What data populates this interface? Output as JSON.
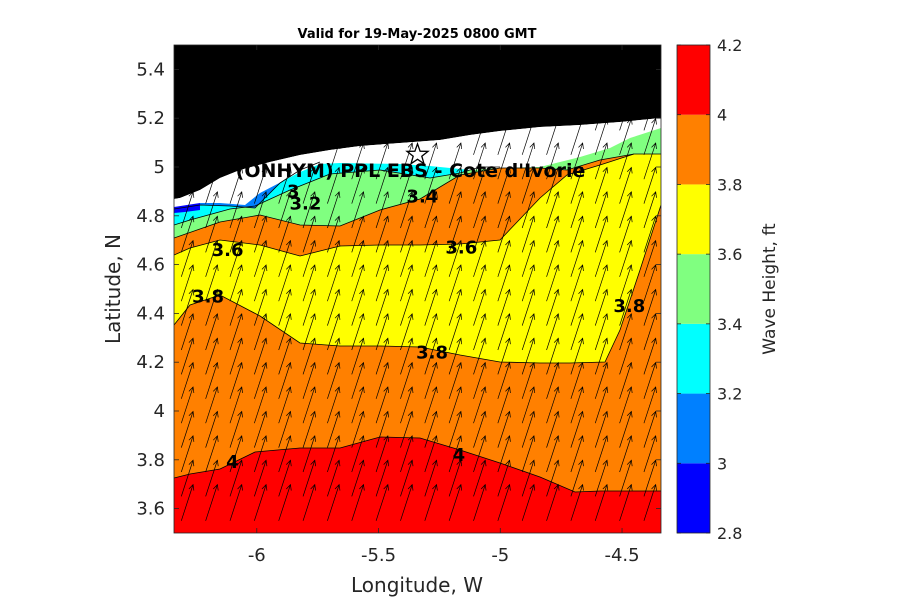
{
  "chart_data": {
    "type": "heatmap",
    "title": "Valid for 19-May-2025 0800 GMT",
    "xlabel": "Longitude, W",
    "ylabel": "Latitude, N",
    "xlim": [
      -6.34,
      -4.34
    ],
    "ylim": [
      3.5,
      5.5
    ],
    "x_ticks": [
      -6,
      -5.5,
      -5,
      -4.5
    ],
    "x_tick_labels": [
      "-6",
      "-5.5",
      "-5",
      "-4.5"
    ],
    "y_ticks": [
      3.6,
      3.8,
      4,
      4.2,
      4.4,
      4.6,
      4.8,
      5,
      5.2,
      5.4
    ],
    "y_tick_labels": [
      "3.6",
      "3.8",
      "4",
      "4.2",
      "4.4",
      "4.6",
      "4.8",
      "5",
      "5.2",
      "5.4"
    ],
    "colorbar": {
      "label": "Wave Height, ft",
      "levels": [
        2.8,
        3,
        3.2,
        3.4,
        3.6,
        3.8,
        4,
        4.2
      ],
      "tick_labels": [
        "2.8",
        "3",
        "3.2",
        "3.4",
        "3.6",
        "3.8",
        "4",
        "4.2"
      ],
      "colors": [
        "#0000ff",
        "#0080ff",
        "#00ffff",
        "#80ff80",
        "#ffff00",
        "#ff8000",
        "#ff0000"
      ]
    },
    "contour_labels": [
      {
        "text": "3",
        "lon": -5.85,
        "lat": 4.9
      },
      {
        "text": "3.2",
        "lon": -5.8,
        "lat": 4.85
      },
      {
        "text": "3.4",
        "lon": -5.32,
        "lat": 4.88
      },
      {
        "text": "3.6",
        "lon": -6.12,
        "lat": 4.66
      },
      {
        "text": "3.6",
        "lon": -5.16,
        "lat": 4.67
      },
      {
        "text": "3.8",
        "lon": -6.2,
        "lat": 4.47
      },
      {
        "text": "3.8",
        "lon": -5.28,
        "lat": 4.24
      },
      {
        "text": "3.8",
        "lon": -4.47,
        "lat": 4.43
      },
      {
        "text": "4",
        "lon": -6.1,
        "lat": 3.79
      },
      {
        "text": "4",
        "lon": -5.17,
        "lat": 3.82
      }
    ],
    "site": {
      "label": "(ONHYM) PPL EBS - Cote d'Ivorie",
      "lon": -5.34,
      "lat": 5.05,
      "marker": "star"
    },
    "land_color": "#000000",
    "vectors": {
      "direction": "toward north-northeast",
      "grid_lon_step": 0.1,
      "grid_lat_step": 0.1
    },
    "grid": false
  }
}
